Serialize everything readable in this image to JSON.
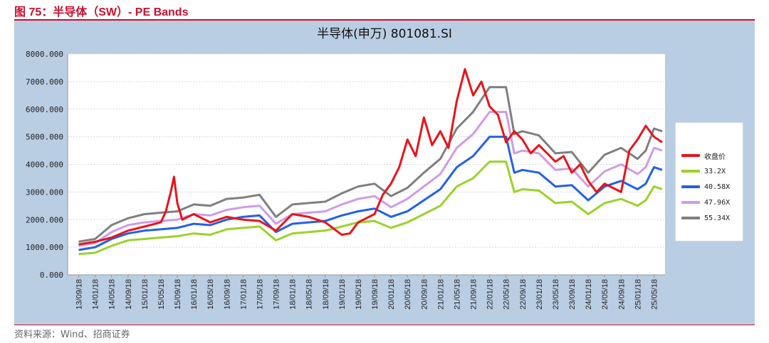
{
  "figure": {
    "caption": "图 75：半导体（SW）- PE Bands",
    "source": "资料来源：Wind、招商证券"
  },
  "chart_data": {
    "type": "line",
    "title": "半导体(申万) 801081.SI",
    "xlabel": "",
    "ylabel": "",
    "ylim": [
      0,
      8000
    ],
    "yticks": [
      0,
      1000,
      2000,
      3000,
      4000,
      5000,
      6000,
      7000,
      8000
    ],
    "ytick_labels": [
      "0.000",
      "1000.000",
      "2000.000",
      "3000.000",
      "4000.000",
      "5000.000",
      "6000.000",
      "7000.000",
      "8000.000"
    ],
    "x_tick_labels": [
      "13/09/18",
      "14/01/18",
      "14/05/18",
      "14/09/18",
      "15/01/18",
      "15/05/18",
      "15/09/18",
      "16/01/18",
      "16/05/18",
      "16/09/18",
      "17/01/18",
      "17/05/18",
      "17/09/18",
      "18/01/18",
      "18/05/18",
      "18/09/18",
      "19/01/18",
      "19/05/18",
      "19/09/18",
      "20/01/18",
      "20/05/18",
      "20/09/18",
      "21/01/18",
      "21/05/18",
      "21/09/18",
      "22/01/18",
      "22/05/18",
      "22/09/18",
      "23/01/18",
      "23/05/18",
      "23/09/18",
      "24/01/18",
      "24/05/18",
      "24/09/18",
      "25/01/18",
      "25/05/18"
    ],
    "grid": true,
    "legend_position": "right",
    "series": [
      {
        "name": "收盘价",
        "color": "#e8141b",
        "points": [
          [
            0,
            1100
          ],
          [
            1,
            1200
          ],
          [
            2,
            1350
          ],
          [
            3,
            1600
          ],
          [
            4,
            1750
          ],
          [
            5,
            1900
          ],
          [
            5.3,
            2300
          ],
          [
            5.6,
            3000
          ],
          [
            5.8,
            3550
          ],
          [
            6,
            2600
          ],
          [
            6.3,
            2000
          ],
          [
            7,
            2200
          ],
          [
            8,
            1900
          ],
          [
            9,
            2100
          ],
          [
            10,
            2000
          ],
          [
            11,
            1950
          ],
          [
            12,
            1600
          ],
          [
            13,
            2200
          ],
          [
            14,
            2100
          ],
          [
            15,
            1900
          ],
          [
            16,
            1450
          ],
          [
            16.5,
            1500
          ],
          [
            17,
            1900
          ],
          [
            18,
            2200
          ],
          [
            18.5,
            2900
          ],
          [
            19,
            3300
          ],
          [
            19.5,
            3900
          ],
          [
            20,
            4900
          ],
          [
            20.5,
            4300
          ],
          [
            21,
            5700
          ],
          [
            21.5,
            4700
          ],
          [
            22,
            5200
          ],
          [
            22.5,
            4600
          ],
          [
            23,
            6300
          ],
          [
            23.5,
            7450
          ],
          [
            24,
            6500
          ],
          [
            24.5,
            7000
          ],
          [
            25,
            6100
          ],
          [
            25.5,
            5800
          ],
          [
            26,
            4800
          ],
          [
            26.5,
            5200
          ],
          [
            27,
            4900
          ],
          [
            27.5,
            4400
          ],
          [
            28,
            4700
          ],
          [
            29,
            4100
          ],
          [
            29.5,
            4300
          ],
          [
            30,
            3700
          ],
          [
            30.5,
            4000
          ],
          [
            31,
            3400
          ],
          [
            31.5,
            3000
          ],
          [
            32,
            3300
          ],
          [
            33,
            3000
          ],
          [
            33.5,
            4500
          ],
          [
            34,
            4900
          ],
          [
            34.5,
            5400
          ],
          [
            35,
            5000
          ],
          [
            35.5,
            4800
          ]
        ]
      },
      {
        "name": "33.2X",
        "color": "#9bd22a",
        "points": [
          [
            0,
            750
          ],
          [
            1,
            800
          ],
          [
            2,
            1050
          ],
          [
            3,
            1250
          ],
          [
            4,
            1300
          ],
          [
            5,
            1350
          ],
          [
            6,
            1400
          ],
          [
            7,
            1500
          ],
          [
            8,
            1450
          ],
          [
            9,
            1650
          ],
          [
            10,
            1700
          ],
          [
            11,
            1750
          ],
          [
            12,
            1250
          ],
          [
            13,
            1500
          ],
          [
            14,
            1550
          ],
          [
            15,
            1600
          ],
          [
            16,
            1750
          ],
          [
            17,
            1900
          ],
          [
            18,
            1950
          ],
          [
            19,
            1700
          ],
          [
            20,
            1900
          ],
          [
            21,
            2200
          ],
          [
            22,
            2500
          ],
          [
            23,
            3200
          ],
          [
            24,
            3500
          ],
          [
            25,
            4100
          ],
          [
            26,
            4100
          ],
          [
            26.5,
            3000
          ],
          [
            27,
            3100
          ],
          [
            28,
            3050
          ],
          [
            29,
            2600
          ],
          [
            30,
            2650
          ],
          [
            31,
            2200
          ],
          [
            32,
            2600
          ],
          [
            33,
            2750
          ],
          [
            34,
            2500
          ],
          [
            34.5,
            2700
          ],
          [
            35,
            3200
          ],
          [
            35.5,
            3100
          ]
        ]
      },
      {
        "name": "40.58X",
        "color": "#2260e8",
        "points": [
          [
            0,
            900
          ],
          [
            1,
            1000
          ],
          [
            2,
            1300
          ],
          [
            3,
            1500
          ],
          [
            4,
            1600
          ],
          [
            5,
            1650
          ],
          [
            6,
            1700
          ],
          [
            7,
            1850
          ],
          [
            8,
            1800
          ],
          [
            9,
            2000
          ],
          [
            10,
            2100
          ],
          [
            11,
            2150
          ],
          [
            12,
            1550
          ],
          [
            13,
            1850
          ],
          [
            14,
            1900
          ],
          [
            15,
            1950
          ],
          [
            16,
            2150
          ],
          [
            17,
            2300
          ],
          [
            18,
            2400
          ],
          [
            19,
            2100
          ],
          [
            20,
            2300
          ],
          [
            21,
            2700
          ],
          [
            22,
            3100
          ],
          [
            23,
            3900
          ],
          [
            24,
            4300
          ],
          [
            25,
            5000
          ],
          [
            26,
            5000
          ],
          [
            26.5,
            3700
          ],
          [
            27,
            3800
          ],
          [
            28,
            3700
          ],
          [
            29,
            3200
          ],
          [
            30,
            3250
          ],
          [
            31,
            2700
          ],
          [
            32,
            3200
          ],
          [
            33,
            3400
          ],
          [
            34,
            3100
          ],
          [
            34.5,
            3300
          ],
          [
            35,
            3900
          ],
          [
            35.5,
            3800
          ]
        ]
      },
      {
        "name": "47.96X",
        "color": "#cf9be8",
        "points": [
          [
            0,
            1050
          ],
          [
            1,
            1150
          ],
          [
            2,
            1550
          ],
          [
            3,
            1800
          ],
          [
            4,
            1900
          ],
          [
            5,
            1950
          ],
          [
            6,
            2000
          ],
          [
            7,
            2200
          ],
          [
            8,
            2150
          ],
          [
            9,
            2350
          ],
          [
            10,
            2450
          ],
          [
            11,
            2500
          ],
          [
            12,
            1850
          ],
          [
            13,
            2200
          ],
          [
            14,
            2250
          ],
          [
            15,
            2300
          ],
          [
            16,
            2550
          ],
          [
            17,
            2750
          ],
          [
            18,
            2850
          ],
          [
            19,
            2450
          ],
          [
            20,
            2750
          ],
          [
            21,
            3200
          ],
          [
            22,
            3650
          ],
          [
            23,
            4600
          ],
          [
            24,
            5100
          ],
          [
            25,
            5900
          ],
          [
            26,
            5900
          ],
          [
            26.5,
            4400
          ],
          [
            27,
            4500
          ],
          [
            28,
            4400
          ],
          [
            29,
            3800
          ],
          [
            30,
            3850
          ],
          [
            31,
            3200
          ],
          [
            32,
            3750
          ],
          [
            33,
            4000
          ],
          [
            34,
            3650
          ],
          [
            34.5,
            3900
          ],
          [
            35,
            4600
          ],
          [
            35.5,
            4500
          ]
        ]
      },
      {
        "name": "55.34X",
        "color": "#7f7f7f",
        "points": [
          [
            0,
            1200
          ],
          [
            1,
            1300
          ],
          [
            2,
            1800
          ],
          [
            3,
            2050
          ],
          [
            4,
            2200
          ],
          [
            5,
            2250
          ],
          [
            6,
            2300
          ],
          [
            7,
            2550
          ],
          [
            8,
            2500
          ],
          [
            9,
            2750
          ],
          [
            10,
            2800
          ],
          [
            11,
            2900
          ],
          [
            12,
            2100
          ],
          [
            13,
            2550
          ],
          [
            14,
            2600
          ],
          [
            15,
            2650
          ],
          [
            16,
            2950
          ],
          [
            17,
            3200
          ],
          [
            18,
            3300
          ],
          [
            19,
            2850
          ],
          [
            20,
            3150
          ],
          [
            21,
            3700
          ],
          [
            22,
            4200
          ],
          [
            23,
            5300
          ],
          [
            24,
            5900
          ],
          [
            25,
            6800
          ],
          [
            26,
            6800
          ],
          [
            26.5,
            5100
          ],
          [
            27,
            5200
          ],
          [
            28,
            5050
          ],
          [
            29,
            4400
          ],
          [
            30,
            4450
          ],
          [
            31,
            3700
          ],
          [
            32,
            4350
          ],
          [
            33,
            4600
          ],
          [
            34,
            4200
          ],
          [
            34.5,
            4500
          ],
          [
            35,
            5300
          ],
          [
            35.5,
            5200
          ]
        ]
      }
    ]
  }
}
